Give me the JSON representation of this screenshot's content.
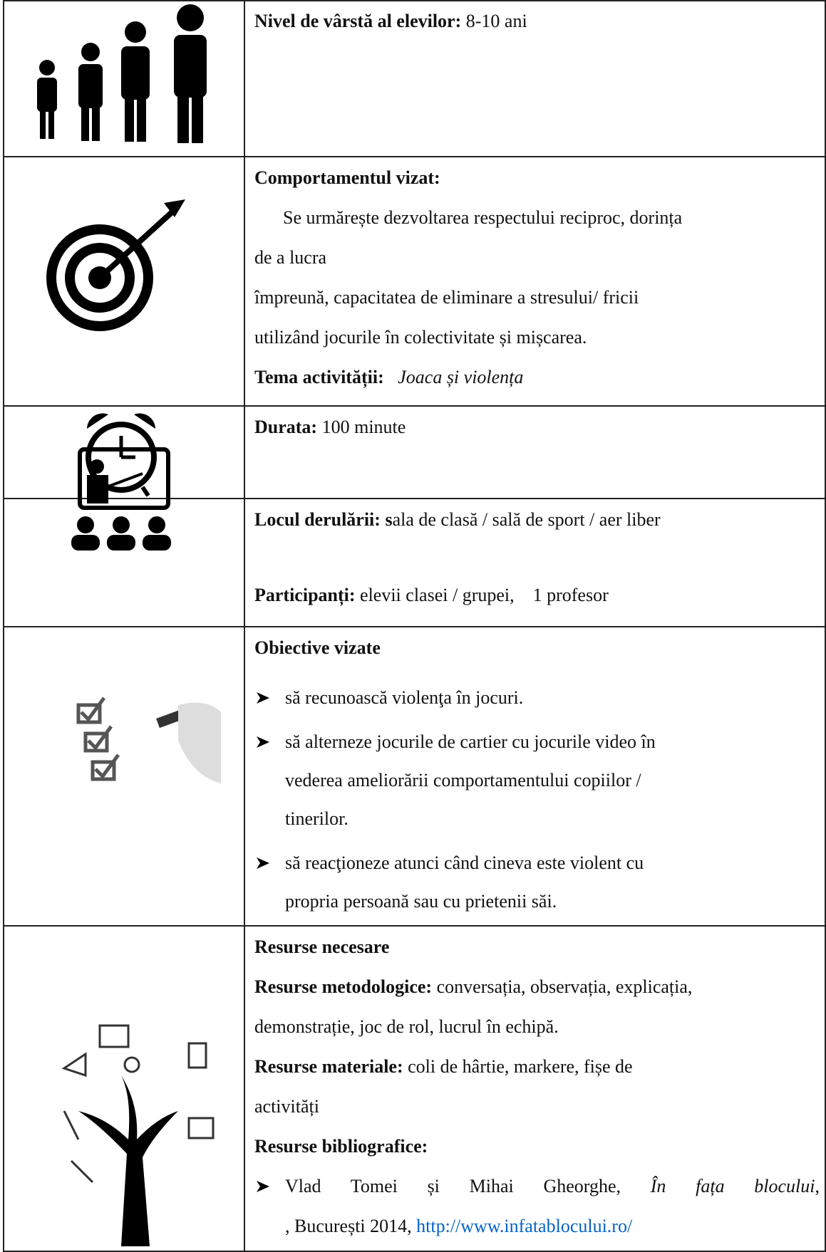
{
  "rows": [
    {
      "label": "Nivel de vârstă al elevilor:",
      "text": "8-10 ani"
    },
    {
      "label": "Comportamentul vizat:",
      "lines": [
        "Se urmărește dezvoltarea respectului reciproc, dorința",
        "de a lucra",
        "împreună, capacitatea de eliminare a stresului/ fricii",
        "utilizând jocurile în colectivitate și mișcarea."
      ],
      "theme_label": "Tema activității:",
      "theme": "Joaca și violența"
    },
    {
      "label": "Durata:",
      "text": "100 minute"
    },
    {
      "label": "Locul derulării:",
      "label_tail": "s",
      "text": "ala de clasă / sală de sport / aer liber",
      "participants_label": "Participanți:",
      "participants": "elevii clasei / grupei,    1 profesor"
    },
    {
      "label": "Obiective vizate",
      "bullets": [
        [
          "să recunoască violenţa în jocuri."
        ],
        [
          "să alterneze jocurile de cartier cu jocurile video în",
          "vederea ameliorării comportamentului copiilor /",
          "tinerilor."
        ],
        [
          "să reacţioneze atunci când cineva este violent cu",
          "propria persoană sau cu prietenii săi."
        ]
      ]
    },
    {
      "label": "Resurse necesare",
      "methods_label": "Resurse metodologice:",
      "methods": [
        "conversația, observația, explicația,",
        "demonstrație, joc de rol, lucrul în echipă."
      ],
      "materials_label": "Resurse materiale:",
      "materials": [
        "coli de hârtie, markere, fișe de",
        "activități"
      ],
      "biblio_label": "Resurse bibliografice:",
      "biblio": {
        "authors": "Vlad Tomei și Mihai Gheorghe,",
        "title": "În fața blocului",
        "place": ", București 2014,",
        "url": "http://www.infatablocului.ro/"
      }
    }
  ]
}
